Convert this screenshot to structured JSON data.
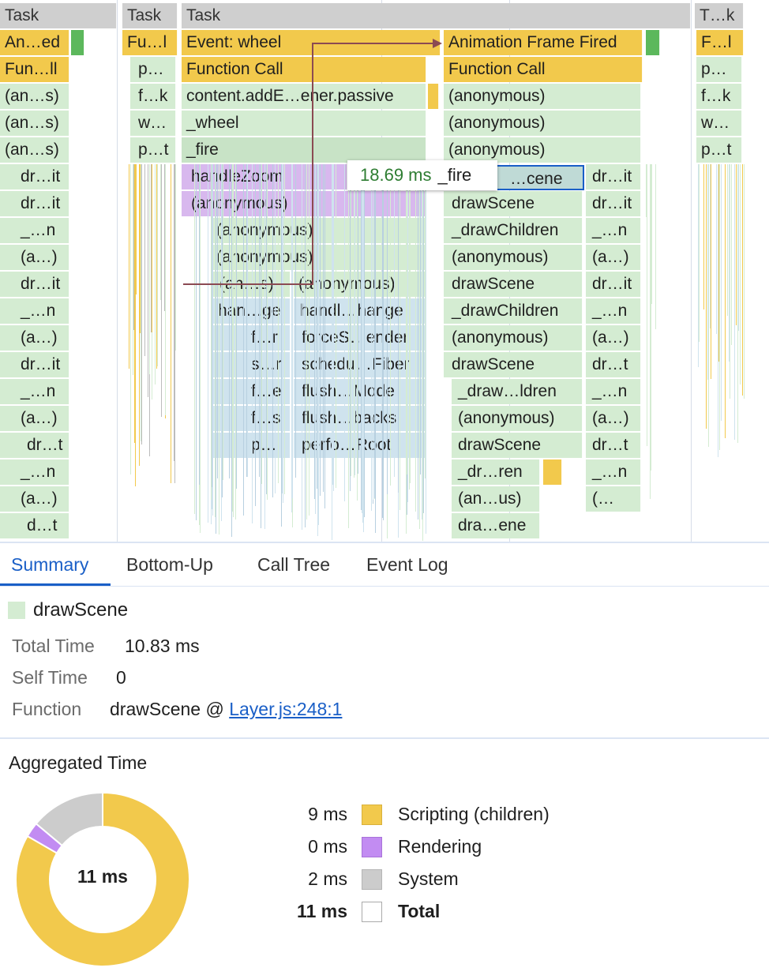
{
  "flame": {
    "task_headers": [
      "Task",
      "Task",
      "Task",
      "T…k"
    ],
    "col1": [
      "An…ed",
      "Fun…ll",
      "(an…s)",
      "(an…s)",
      "(an…s)",
      "dr…it",
      "dr…it",
      "_…n",
      "(a…)",
      "dr…it",
      "_…n",
      "(a…)",
      "dr…it",
      "_…n",
      "(a…)",
      "dr…t",
      "_…n",
      "(a…)",
      "d…t"
    ],
    "col2": [
      "Fu…l",
      "p…",
      "f…k",
      "w…",
      "p…t"
    ],
    "col3_top": [
      "Event: wheel",
      "Function Call",
      "content.addE…ener.passive",
      "_wheel",
      "_fire",
      "handleZoom",
      "(anonymous)",
      "(anonymous)",
      "(anonymous)",
      "(an…s)",
      "(anonymous)"
    ],
    "col3_left": [
      "han…ge",
      "f…r",
      "s…r",
      "f…e",
      "f…s",
      "p…"
    ],
    "col3_right": [
      "handl…hange",
      "forceS…ender",
      "schedu…Fiber",
      "flush…Mode",
      "flush…backs",
      "perfo…Root"
    ],
    "col4": [
      "Animation Frame Fired",
      "Function Call",
      "(anonymous)",
      "(anonymous)",
      "(anonymous)",
      "…cene",
      "drawScene",
      "_drawChildren",
      "(anonymous)",
      "drawScene",
      "_drawChildren",
      "(anonymous)",
      "drawScene",
      "_draw…ldren",
      "(anonymous)",
      "drawScene",
      "_dr…ren",
      "(an…us)",
      "dra…ene"
    ],
    "col5": [
      "dr…it",
      "dr…it",
      "_…n",
      "(a…)",
      "dr…it",
      "_…n",
      "(a…)",
      "dr…t",
      "_…n",
      "(a…)",
      "dr…t",
      "_…n",
      "(…"
    ],
    "col6": [
      "F…l",
      "p…",
      "f…k",
      "w…",
      "p…t"
    ],
    "tooltip": {
      "time": "18.69 ms",
      "name": "_fire"
    }
  },
  "tabs": [
    "Summary",
    "Bottom-Up",
    "Call Tree",
    "Event Log"
  ],
  "summary": {
    "title": "drawScene",
    "title_color": "#d4ecd2",
    "total_time_label": "Total Time",
    "total_time": "10.83 ms",
    "self_time_label": "Self Time",
    "self_time": "0",
    "function_label": "Function",
    "function_name": "drawScene @ ",
    "function_link": "Layer.js:248:1"
  },
  "aggregated": {
    "heading": "Aggregated Time",
    "center_label": "11 ms",
    "rows": [
      {
        "value": "9 ms",
        "label": "Scripting (children)",
        "color": "#f2c94c",
        "ms": 9
      },
      {
        "value": "0 ms",
        "label": "Rendering",
        "color": "#c28cf2",
        "ms": 0.3
      },
      {
        "value": "2 ms",
        "label": "System",
        "color": "#cccccc",
        "ms": 1.5
      },
      {
        "value": "11 ms",
        "label": "Total",
        "color": "#ffffff"
      }
    ]
  }
}
